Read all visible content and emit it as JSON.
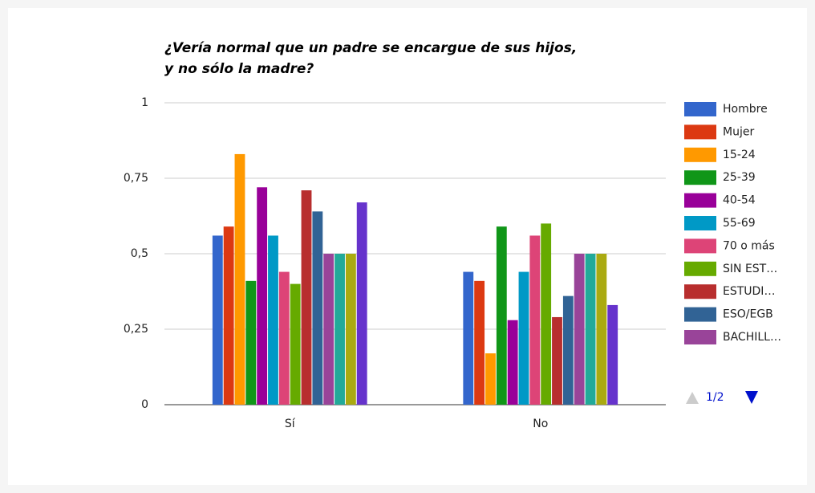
{
  "chart_data": {
    "type": "bar",
    "title": [
      "¿Vería normal que un padre se encargue de sus hijos,",
      "y no sólo la madre?"
    ],
    "categories": [
      "Sí",
      "No"
    ],
    "series": [
      {
        "name": "Hombre",
        "color": "#3366cc",
        "values": [
          0.56,
          0.44
        ]
      },
      {
        "name": "Mujer",
        "color": "#dc3912",
        "values": [
          0.59,
          0.41
        ]
      },
      {
        "name": "15-24",
        "color": "#ff9900",
        "values": [
          0.83,
          0.17
        ]
      },
      {
        "name": "25-39",
        "color": "#109618",
        "values": [
          0.41,
          0.59
        ]
      },
      {
        "name": "40-54",
        "color": "#990099",
        "values": [
          0.72,
          0.28
        ]
      },
      {
        "name": "55-69",
        "color": "#0099c6",
        "values": [
          0.56,
          0.44
        ]
      },
      {
        "name": "70 o más",
        "color": "#dd4477",
        "values": [
          0.44,
          0.56
        ]
      },
      {
        "name": "SIN EST…",
        "color": "#66aa00",
        "values": [
          0.4,
          0.6
        ]
      },
      {
        "name": "ESTUDI…",
        "color": "#b82e2e",
        "values": [
          0.71,
          0.29
        ]
      },
      {
        "name": "ESO/EGB",
        "color": "#316395",
        "values": [
          0.64,
          0.36
        ]
      },
      {
        "name": "BACHILL…",
        "color": "#994499",
        "values": [
          0.5,
          0.5
        ]
      },
      {
        "color": "#22aa99",
        "values": [
          0.5,
          0.5
        ]
      },
      {
        "color": "#aaaa11",
        "values": [
          0.5,
          0.5
        ]
      },
      {
        "color": "#6633cc",
        "values": [
          0.67,
          0.33
        ]
      }
    ],
    "ylim": [
      0,
      1
    ],
    "yticks": [
      0,
      {
        "value": 0.25,
        "label": "0,25"
      },
      {
        "value": 0.5,
        "label": "0,5"
      },
      {
        "value": 0.75,
        "label": "0,75"
      },
      1
    ],
    "grid": true,
    "legend": "right",
    "legend_page": "1/2"
  }
}
